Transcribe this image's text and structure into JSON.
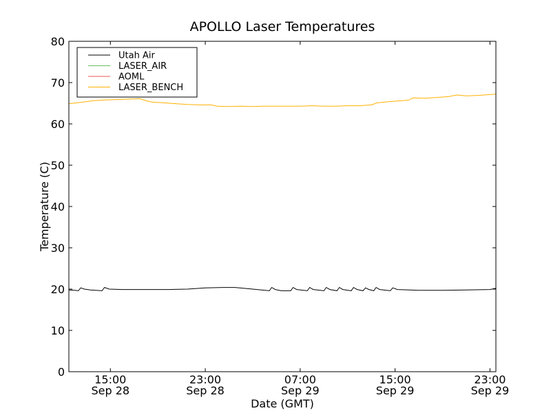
{
  "chart_data": {
    "type": "line",
    "title": "APOLLO Laser Temperatures",
    "xlabel": "Date (GMT)",
    "ylabel": "Temperature (C)",
    "xlim": [
      11.5,
      47.5
    ],
    "ylim": [
      0,
      80
    ],
    "yticks": [
      0,
      10,
      20,
      30,
      40,
      50,
      60,
      70,
      80
    ],
    "xticks": [
      {
        "x": 15,
        "time": "15:00",
        "date": "Sep 28"
      },
      {
        "x": 23,
        "time": "23:00",
        "date": "Sep 28"
      },
      {
        "x": 31,
        "time": "07:00",
        "date": "Sep 29"
      },
      {
        "x": 39,
        "time": "15:00",
        "date": "Sep 29"
      },
      {
        "x": 47,
        "time": "23:00",
        "date": "Sep 29"
      }
    ],
    "legend_position": "top-left",
    "series": [
      {
        "name": "Utah Air",
        "color": "#000000",
        "points": [
          [
            11.5,
            19.8
          ],
          [
            12.0,
            19.7
          ],
          [
            12.3,
            19.6
          ],
          [
            12.5,
            20.3
          ],
          [
            12.8,
            20.0
          ],
          [
            13.3,
            19.8
          ],
          [
            14.3,
            19.6
          ],
          [
            14.5,
            20.4
          ],
          [
            14.9,
            20.0
          ],
          [
            16,
            19.9
          ],
          [
            18,
            19.9
          ],
          [
            20,
            19.9
          ],
          [
            21.5,
            20.0
          ],
          [
            23,
            20.3
          ],
          [
            24.5,
            20.4
          ],
          [
            25.5,
            20.4
          ],
          [
            27,
            20.0
          ],
          [
            28.4,
            19.6
          ],
          [
            28.6,
            20.4
          ],
          [
            28.9,
            19.9
          ],
          [
            29.4,
            19.6
          ],
          [
            30.2,
            19.6
          ],
          [
            30.4,
            20.4
          ],
          [
            30.7,
            19.9
          ],
          [
            31.6,
            19.6
          ],
          [
            31.8,
            20.4
          ],
          [
            32.1,
            19.9
          ],
          [
            33,
            19.6
          ],
          [
            33.2,
            20.4
          ],
          [
            33.5,
            19.9
          ],
          [
            34.1,
            19.6
          ],
          [
            34.3,
            20.4
          ],
          [
            34.6,
            19.9
          ],
          [
            35.3,
            19.6
          ],
          [
            35.5,
            20.4
          ],
          [
            35.8,
            19.9
          ],
          [
            36.3,
            19.6
          ],
          [
            36.5,
            20.3
          ],
          [
            36.8,
            19.9
          ],
          [
            37.2,
            19.6
          ],
          [
            37.4,
            20.4
          ],
          [
            37.7,
            19.9
          ],
          [
            38.6,
            19.6
          ],
          [
            38.8,
            20.3
          ],
          [
            39.2,
            19.9
          ],
          [
            41,
            19.7
          ],
          [
            43,
            19.7
          ],
          [
            45,
            19.8
          ],
          [
            47,
            19.9
          ],
          [
            47.5,
            20.2
          ]
        ]
      },
      {
        "name": "LASER_AIR",
        "color": "#66bb66",
        "points": []
      },
      {
        "name": "AOML",
        "color": "#ee5555",
        "points": []
      },
      {
        "name": "LASER_BENCH",
        "color": "#ffb000",
        "points": [
          [
            11.5,
            64.9
          ],
          [
            12.5,
            65.2
          ],
          [
            13.5,
            65.6
          ],
          [
            14.5,
            65.8
          ],
          [
            15.5,
            65.9
          ],
          [
            16.5,
            66.0
          ],
          [
            17.5,
            66.1
          ],
          [
            18.0,
            65.6
          ],
          [
            18.5,
            65.3
          ],
          [
            19.5,
            65.1
          ],
          [
            20.5,
            64.9
          ],
          [
            21.5,
            64.7
          ],
          [
            22.5,
            64.6
          ],
          [
            23.5,
            64.6
          ],
          [
            24,
            64.3
          ],
          [
            25,
            64.2
          ],
          [
            26,
            64.3
          ],
          [
            27,
            64.2
          ],
          [
            28,
            64.3
          ],
          [
            29,
            64.3
          ],
          [
            30,
            64.3
          ],
          [
            31,
            64.3
          ],
          [
            32,
            64.4
          ],
          [
            33,
            64.3
          ],
          [
            34,
            64.3
          ],
          [
            35,
            64.4
          ],
          [
            36,
            64.4
          ],
          [
            37,
            64.6
          ],
          [
            37.5,
            65.1
          ],
          [
            38.5,
            65.4
          ],
          [
            39.5,
            65.6
          ],
          [
            40.2,
            65.8
          ],
          [
            40.5,
            66.3
          ],
          [
            41.5,
            66.2
          ],
          [
            42.5,
            66.4
          ],
          [
            43.5,
            66.6
          ],
          [
            44.2,
            67.0
          ],
          [
            45,
            66.8
          ],
          [
            46,
            66.9
          ],
          [
            47,
            67.1
          ],
          [
            47.5,
            67.2
          ]
        ]
      }
    ]
  }
}
